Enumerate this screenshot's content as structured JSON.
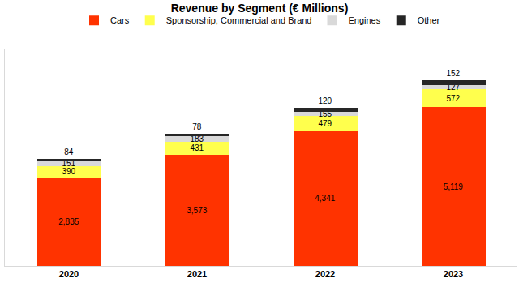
{
  "chart_data": {
    "type": "bar",
    "title": "Revenue by Segment (€ Millions)",
    "categories": [
      "2020",
      "2021",
      "2022",
      "2023"
    ],
    "series": [
      {
        "name": "Cars",
        "color": "#ff3300",
        "values": [
          2835,
          3573,
          4341,
          5119
        ],
        "value_labels": [
          "2,835",
          "3,573",
          "4,341",
          "5,119"
        ]
      },
      {
        "name": "Sponsorship, Commercial and Brand",
        "color": "#ffff4d",
        "values": [
          390,
          431,
          479,
          572
        ]
      },
      {
        "name": "Engines",
        "color": "#d9d9d9",
        "values": [
          151,
          183,
          155,
          127
        ]
      },
      {
        "name": "Other",
        "color": "#262626",
        "values": [
          84,
          78,
          120,
          152
        ]
      }
    ],
    "ylim": [
      0,
      7000
    ],
    "stacked": true,
    "data_labels": true,
    "tick_labels": "x",
    "grid": false,
    "legend": "top"
  }
}
